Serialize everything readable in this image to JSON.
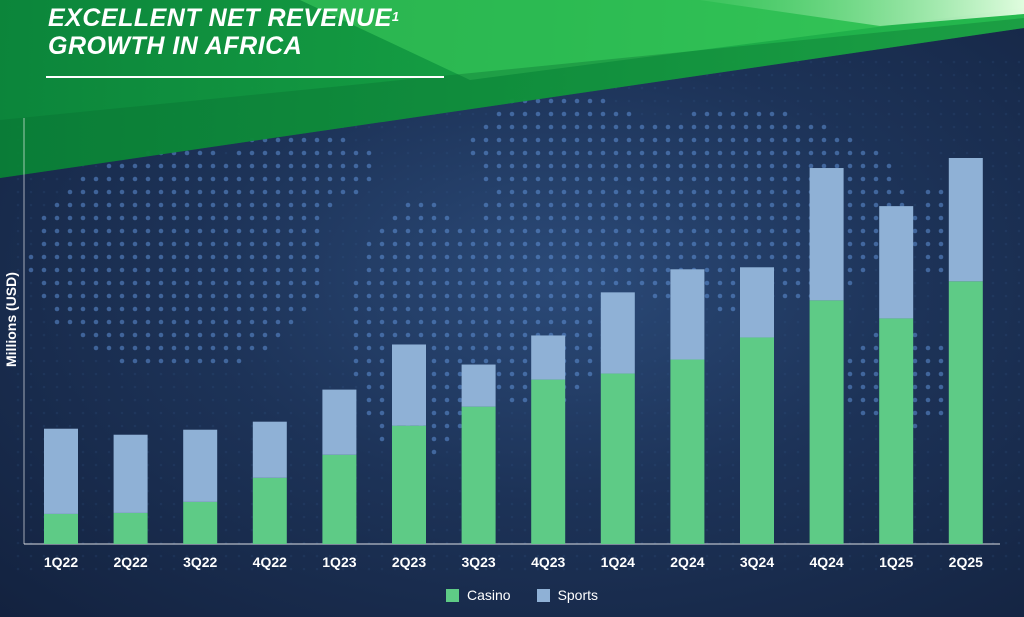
{
  "header": {
    "title_line1": "EXCELLENT NET REVENUE",
    "title_sup": "1",
    "title_line2": "GROWTH IN AFRICA"
  },
  "colors": {
    "casino": "#5ecb86",
    "sports": "#8fb1d6",
    "banner_green": "#1fb24a",
    "background": "#1d3358"
  },
  "chart_data": {
    "type": "bar",
    "stacked": true,
    "categories": [
      "1Q22",
      "2Q22",
      "3Q22",
      "4Q22",
      "1Q23",
      "2Q23",
      "3Q23",
      "4Q23",
      "1Q24",
      "2Q24",
      "3Q24",
      "4Q24",
      "1Q25",
      "2Q25"
    ],
    "series": [
      {
        "name": "Casino",
        "values": [
          30,
          31,
          42,
          66,
          89,
          118,
          137,
          164,
          170,
          184,
          206,
          243,
          225,
          262
        ]
      },
      {
        "name": "Sports",
        "values": [
          85,
          78,
          72,
          56,
          65,
          81,
          42,
          44,
          81,
          90,
          70,
          132,
          112,
          123
        ]
      }
    ],
    "ylabel": "Millions (USD)",
    "ylim": [
      0,
      400
    ],
    "y_ticks_shown": false,
    "grid": false,
    "legend": "bottom-center"
  }
}
